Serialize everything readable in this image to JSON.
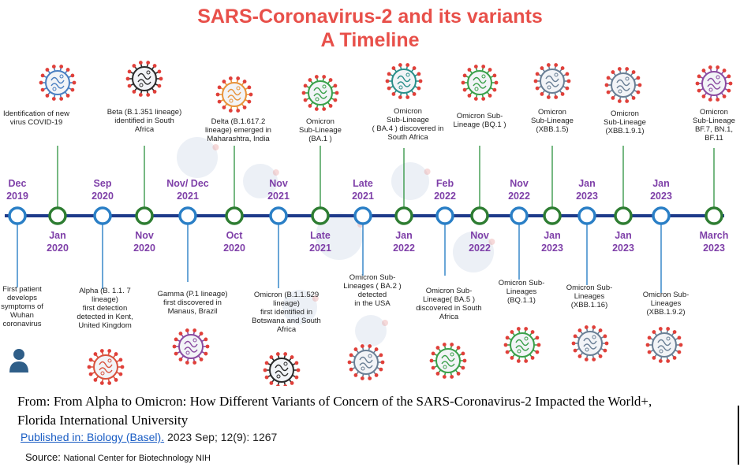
{
  "title": {
    "line1": "SARS-Coronavirus-2 and its variants",
    "line2": "A Timeline"
  },
  "colors": {
    "title": "#e8504a",
    "axis": "#1d3a8a",
    "date": "#7e3fa8",
    "blue_node": "#2a7fc6",
    "green_node": "#2e7d32",
    "blue_stem": "#2a7fc6",
    "green_stem": "#3b9a4d"
  },
  "nodes": [
    {
      "date": [
        "Dec",
        "2019"
      ],
      "date_pos": "above",
      "color": "blue",
      "caption": [
        "First patient",
        "develops",
        "symptoms of",
        "Wuhan",
        "coronavirus"
      ],
      "caption_pos": "below",
      "icon": "person-icon"
    },
    {
      "date": [
        "Jan",
        "2020"
      ],
      "date_pos": "below",
      "color": "green",
      "caption": [
        "Identification of new",
        "virus COVID-19"
      ],
      "caption_pos": "above",
      "icon": "virus-blue-icon"
    },
    {
      "date": [
        "Sep",
        "2020"
      ],
      "date_pos": "above",
      "color": "blue",
      "caption": [
        "Alpha (B. 1.1. 7",
        "lineage)",
        "first detection",
        "detected in Kent,",
        "United Kingdom"
      ],
      "caption_pos": "below",
      "icon": "virus-red-icon"
    },
    {
      "date": [
        "Nov",
        "2020"
      ],
      "date_pos": "below",
      "color": "green",
      "caption": [
        "Beta (B.1.351 lineage)",
        "identified in South",
        "Africa"
      ],
      "caption_pos": "above",
      "icon": "virus-black-icon"
    },
    {
      "date": [
        "Nov/  Dec",
        "2021"
      ],
      "date_pos": "above",
      "color": "blue",
      "caption": [
        "Gamma (P.1 lineage)",
        "first discovered in",
        "Manaus, Brazil"
      ],
      "caption_pos": "below",
      "icon": "virus-purple-icon"
    },
    {
      "date": [
        "Oct",
        "2020"
      ],
      "date_pos": "below",
      "color": "green",
      "caption": [
        "Delta (B.1.617.2",
        "lineage) emerged  in",
        "Maharashtra, India"
      ],
      "caption_pos": "above",
      "icon": "virus-orange-icon"
    },
    {
      "date": [
        "Nov",
        "2021"
      ],
      "date_pos": "above",
      "color": "blue",
      "caption": [
        "Omicron (B.1.1.529",
        "lineage)",
        "first identified in",
        "Botswana and South",
        "Africa"
      ],
      "caption_pos": "below",
      "icon": "virus-black-icon"
    },
    {
      "date": [
        "Late",
        "2021"
      ],
      "date_pos": "below",
      "color": "green",
      "caption": [
        "Omicron",
        "Sub-Lineage",
        "(BA.1 )"
      ],
      "caption_pos": "above",
      "icon": "virus-green-icon"
    },
    {
      "date": [
        "Late",
        "2021"
      ],
      "date_pos": "above",
      "color": "blue",
      "caption": [
        "Omicron Sub-",
        "Lineages ( BA.2 )",
        "detected",
        "in the USA"
      ],
      "caption_pos": "below",
      "icon": "virus-slate-icon"
    },
    {
      "date": [
        "Jan",
        "2022"
      ],
      "date_pos": "below",
      "color": "green",
      "caption": [
        "Omicron",
        "Sub-Lineage",
        "( BA.4 ) discovered in",
        "South Africa"
      ],
      "caption_pos": "above",
      "icon": "virus-teal-icon"
    },
    {
      "date": [
        "Feb",
        "2022"
      ],
      "date_pos": "above",
      "color": "blue",
      "caption": [
        "Omicron Sub-",
        "Lineage( BA.5 )",
        "discovered in South",
        "Africa"
      ],
      "caption_pos": "below",
      "icon": "virus-green-icon"
    },
    {
      "date": [
        "Nov",
        "2022"
      ],
      "date_pos": "below",
      "color": "green",
      "caption": [
        "Omicron Sub-",
        "Lineage (BQ.1 )"
      ],
      "caption_pos": "above",
      "icon": "virus-green-icon"
    },
    {
      "date": [
        "Nov",
        "2022"
      ],
      "date_pos": "above",
      "color": "blue",
      "caption": [
        "Omicron Sub-",
        "Lineages",
        "(BQ.1.1)"
      ],
      "caption_pos": "below",
      "icon": "virus-green-icon"
    },
    {
      "date": [
        "Jan",
        "2023"
      ],
      "date_pos": "below",
      "color": "green",
      "caption": [
        "Omicron",
        "Sub-Lineage",
        "(XBB.1.5)"
      ],
      "caption_pos": "above",
      "icon": "virus-slate-icon"
    },
    {
      "date": [
        "Jan",
        "2023"
      ],
      "date_pos": "above",
      "color": "blue",
      "caption": [
        "Omicron Sub-",
        "Lineages",
        "(XBB.1.16)"
      ],
      "caption_pos": "below",
      "icon": "virus-slate-icon"
    },
    {
      "date": [
        "Jan",
        "2023"
      ],
      "date_pos": "below",
      "color": "green",
      "caption": [
        "Omicron",
        "Sub-Lineage",
        "(XBB.1.9.1)"
      ],
      "caption_pos": "above",
      "icon": "virus-slate-icon"
    },
    {
      "date": [
        "Jan",
        "2023"
      ],
      "date_pos": "above",
      "color": "blue",
      "caption": [
        "Omicron Sub-",
        "Lineages",
        "(XBB.1.9.2)"
      ],
      "caption_pos": "below",
      "icon": "virus-slate-icon"
    },
    {
      "date": [
        "March",
        "2023"
      ],
      "date_pos": "below",
      "color": "green",
      "caption": [
        "Omicron",
        "Sub-Lineage",
        "BF.7, BN.1,",
        "BF.11"
      ],
      "caption_pos": "above",
      "icon": "virus-purple-icon"
    }
  ],
  "footer": {
    "from_label": "From:",
    "from_text": "From Alpha to Omicron: How Different Variants of Concern of the SARS-Coronavirus-2 Impacted the World+,",
    "university": "Florida International University",
    "published_link": "Published in: Biology (Basel).",
    "published_rest": "2023 Sep; 12(9): 1267",
    "source_label": "Source:",
    "source_name": "National Center for Biotechnology NIH"
  }
}
